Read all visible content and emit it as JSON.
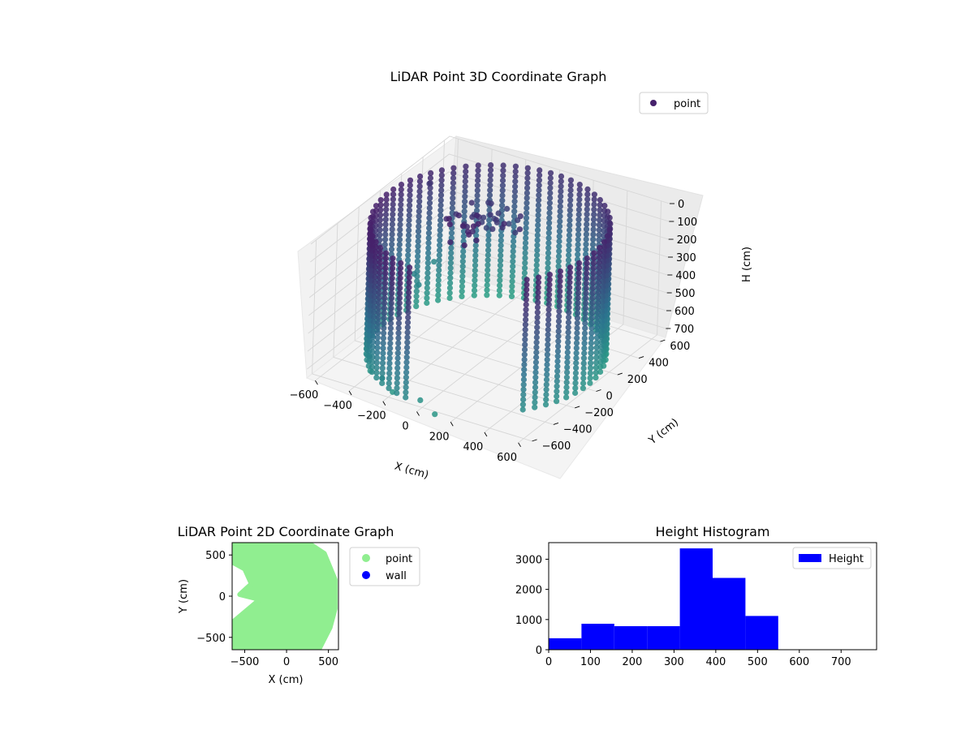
{
  "colors": {
    "viridis_dark": "#46216b",
    "viridis_mid": "#2c728e",
    "viridis_light": "#28ae80",
    "point_2d": "#90ee90",
    "wall_2d": "#0000ff",
    "histogram": "#0000ff"
  },
  "chart_data": [
    {
      "type": "scatter",
      "title": "LiDAR Point 3D Coordinate Graph",
      "xlabel": "X (cm)",
      "ylabel": "Y (cm)",
      "zlabel": "H (cm)",
      "xlim": [
        -650,
        650
      ],
      "ylim": [
        -650,
        650
      ],
      "zlim": [
        750,
        0
      ],
      "x_ticks": [
        "−600",
        "−400",
        "−200",
        "0",
        "200",
        "400",
        "600"
      ],
      "y_ticks": [
        "−600",
        "−400",
        "−200",
        "0",
        "200",
        "400",
        "600"
      ],
      "z_ticks": [
        "0",
        "100",
        "200",
        "300",
        "400",
        "500",
        "600",
        "700"
      ],
      "legend": [
        "point"
      ],
      "legend_position": "upper-right",
      "series": [
        {
          "name": "point",
          "shape": "partial cylindrical wall with scattered outliers",
          "wall_radius": 600,
          "wall_start_deg": 0,
          "wall_end_deg": 300,
          "height_range": [
            0,
            750
          ]
        }
      ]
    },
    {
      "type": "scatter",
      "title": "LiDAR Point 2D Coordinate Graph",
      "xlabel": "X (cm)",
      "ylabel": "Y (cm)",
      "xlim": [
        -650,
        620
      ],
      "ylim": [
        -650,
        650
      ],
      "x_ticks": [
        "−500",
        "0",
        "500"
      ],
      "y_ticks": [
        "−500",
        "0",
        "500"
      ],
      "legend": [
        "point",
        "wall"
      ],
      "legend_position": "outside-right",
      "series": [
        {
          "name": "point",
          "region": "filled disc of radius ~600 with a wedge removed on the left"
        },
        {
          "name": "wall",
          "values": []
        }
      ]
    },
    {
      "type": "bar",
      "title": "Height Histogram",
      "xlabel": "",
      "ylabel": "",
      "xlim": [
        0,
        785
      ],
      "ylim": [
        0,
        3550
      ],
      "x_ticks": [
        "0",
        "100",
        "200",
        "300",
        "400",
        "500",
        "600",
        "700"
      ],
      "y_ticks": [
        "0",
        "1000",
        "2000",
        "3000"
      ],
      "legend": [
        "Height"
      ],
      "legend_position": "upper-right",
      "bins": [
        [
          0,
          78.5
        ],
        [
          78.5,
          157
        ],
        [
          157,
          235.5
        ],
        [
          235.5,
          314
        ],
        [
          314,
          392.5
        ],
        [
          392.5,
          471
        ],
        [
          471,
          549.5
        ],
        [
          549.5,
          628
        ],
        [
          628,
          706.5
        ],
        [
          706.5,
          785
        ]
      ],
      "values": [
        380,
        860,
        780,
        780,
        3360,
        2380,
        1120,
        0,
        0,
        0
      ]
    }
  ]
}
